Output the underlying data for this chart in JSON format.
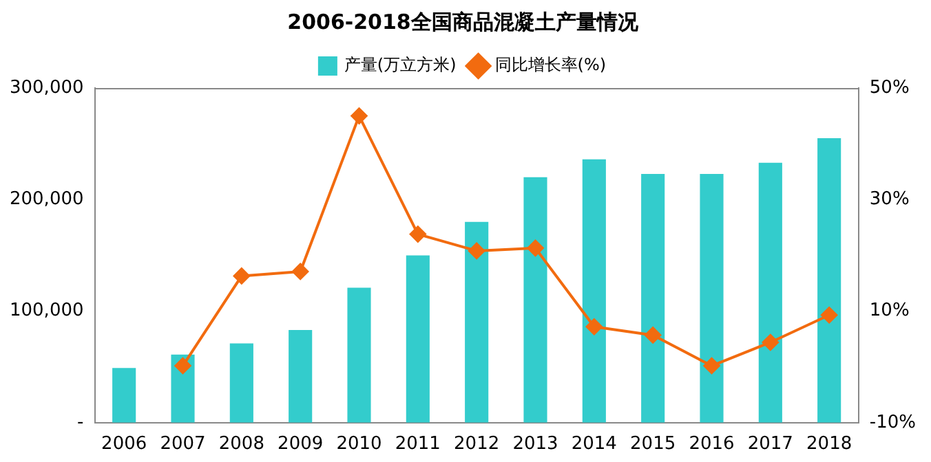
{
  "chart_data": {
    "type": "bar",
    "title": "2006-2018全国商品混凝土产量情况",
    "categories": [
      "2006",
      "2007",
      "2008",
      "2009",
      "2010",
      "2011",
      "2012",
      "2013",
      "2014",
      "2015",
      "2016",
      "2017",
      "2018"
    ],
    "series": [
      {
        "name": "产量(万立方米)",
        "color": "#33cccc",
        "values": [
          49000,
          61000,
          71000,
          83000,
          121000,
          150000,
          180000,
          220000,
          236000,
          223000,
          223000,
          233000,
          255000
        ]
      },
      {
        "name": "同比增长率(%)",
        "type": "line",
        "axis": "y2",
        "color": "#f26b0f",
        "values": [
          null,
          0.2,
          16.3,
          17.1,
          45.0,
          23.8,
          20.8,
          21.3,
          7.2,
          5.7,
          0.2,
          4.4,
          9.3
        ]
      }
    ],
    "ylim": [
      0,
      300000
    ],
    "yticks": [
      {
        "value": 0,
        "label": "-"
      },
      {
        "value": 100000,
        "label": "100,000"
      },
      {
        "value": 200000,
        "label": "200,000"
      },
      {
        "value": 300000,
        "label": "300,000"
      }
    ],
    "y2lim": [
      -10,
      50
    ],
    "y2ticks": [
      {
        "value": -10,
        "label": "-10%"
      },
      {
        "value": 10,
        "label": "10%"
      },
      {
        "value": 30,
        "label": "30%"
      },
      {
        "value": 50,
        "label": "50%"
      }
    ],
    "grid": false,
    "legend": "top",
    "marker": "diamond",
    "line_style": "solid"
  }
}
